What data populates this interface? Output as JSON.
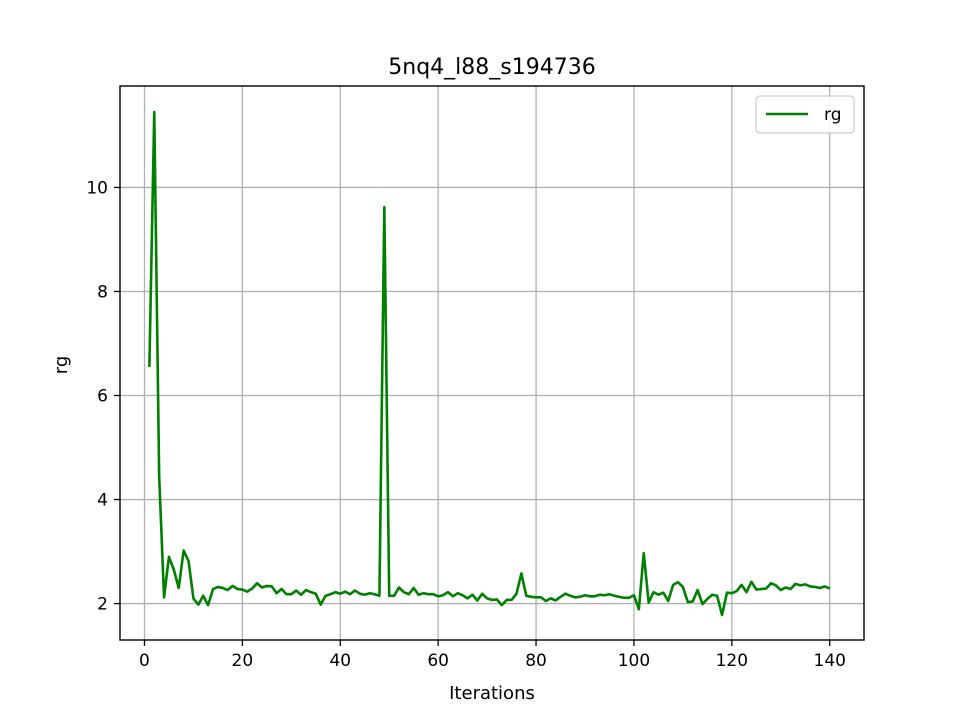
{
  "chart_data": {
    "type": "line",
    "title": "5nq4_l88_s194736",
    "xlabel": "Iterations",
    "ylabel": "rg",
    "xlim": [
      -5,
      147
    ],
    "ylim": [
      1.3,
      11.95
    ],
    "xticks": [
      0,
      20,
      40,
      60,
      80,
      100,
      120,
      140
    ],
    "yticks": [
      2,
      4,
      6,
      8,
      10
    ],
    "grid": true,
    "legend_position": "top-right",
    "series": [
      {
        "name": "rg",
        "color": "#008000",
        "x": [
          1,
          2,
          3,
          4,
          5,
          6,
          7,
          8,
          9,
          10,
          11,
          12,
          13,
          14,
          15,
          16,
          17,
          18,
          19,
          20,
          21,
          22,
          23,
          24,
          25,
          26,
          27,
          28,
          29,
          30,
          31,
          32,
          33,
          34,
          35,
          36,
          37,
          38,
          39,
          40,
          41,
          42,
          43,
          44,
          45,
          46,
          47,
          48,
          49,
          50,
          51,
          52,
          53,
          54,
          55,
          56,
          57,
          58,
          59,
          60,
          61,
          62,
          63,
          64,
          65,
          66,
          67,
          68,
          69,
          70,
          71,
          72,
          73,
          74,
          75,
          76,
          77,
          78,
          79,
          80,
          81,
          82,
          83,
          84,
          85,
          86,
          87,
          88,
          89,
          90,
          91,
          92,
          93,
          94,
          95,
          96,
          97,
          98,
          99,
          100,
          101,
          102,
          103,
          104,
          105,
          106,
          107,
          108,
          109,
          110,
          111,
          112,
          113,
          114,
          115,
          116,
          117,
          118,
          119,
          120,
          121,
          122,
          123,
          124,
          125,
          126,
          127,
          128,
          129,
          130,
          131,
          132,
          133,
          134,
          135,
          136,
          137,
          138,
          139,
          140
        ],
        "values": [
          6.55,
          11.45,
          4.45,
          2.12,
          2.9,
          2.65,
          2.3,
          3.02,
          2.82,
          2.1,
          1.98,
          2.15,
          1.97,
          2.28,
          2.32,
          2.3,
          2.26,
          2.34,
          2.28,
          2.27,
          2.23,
          2.29,
          2.39,
          2.31,
          2.34,
          2.33,
          2.2,
          2.28,
          2.18,
          2.18,
          2.25,
          2.17,
          2.26,
          2.22,
          2.19,
          1.98,
          2.15,
          2.18,
          2.22,
          2.19,
          2.23,
          2.18,
          2.25,
          2.19,
          2.17,
          2.2,
          2.18,
          2.15,
          9.62,
          2.15,
          2.15,
          2.31,
          2.22,
          2.18,
          2.3,
          2.17,
          2.2,
          2.18,
          2.18,
          2.14,
          2.16,
          2.22,
          2.14,
          2.2,
          2.16,
          2.1,
          2.17,
          2.06,
          2.19,
          2.1,
          2.07,
          2.08,
          1.97,
          2.07,
          2.07,
          2.19,
          2.58,
          2.15,
          2.13,
          2.12,
          2.12,
          2.05,
          2.1,
          2.06,
          2.13,
          2.19,
          2.15,
          2.12,
          2.13,
          2.16,
          2.14,
          2.14,
          2.17,
          2.16,
          2.18,
          2.15,
          2.13,
          2.11,
          2.11,
          2.16,
          1.89,
          2.97,
          2.02,
          2.22,
          2.17,
          2.21,
          2.05,
          2.36,
          2.41,
          2.32,
          2.03,
          2.04,
          2.26,
          1.99,
          2.09,
          2.17,
          2.15,
          1.78,
          2.21,
          2.2,
          2.24,
          2.36,
          2.22,
          2.42,
          2.27,
          2.28,
          2.29,
          2.39,
          2.35,
          2.26,
          2.31,
          2.28,
          2.38,
          2.35,
          2.37,
          2.33,
          2.32,
          2.3,
          2.33,
          2.29
        ]
      }
    ]
  }
}
